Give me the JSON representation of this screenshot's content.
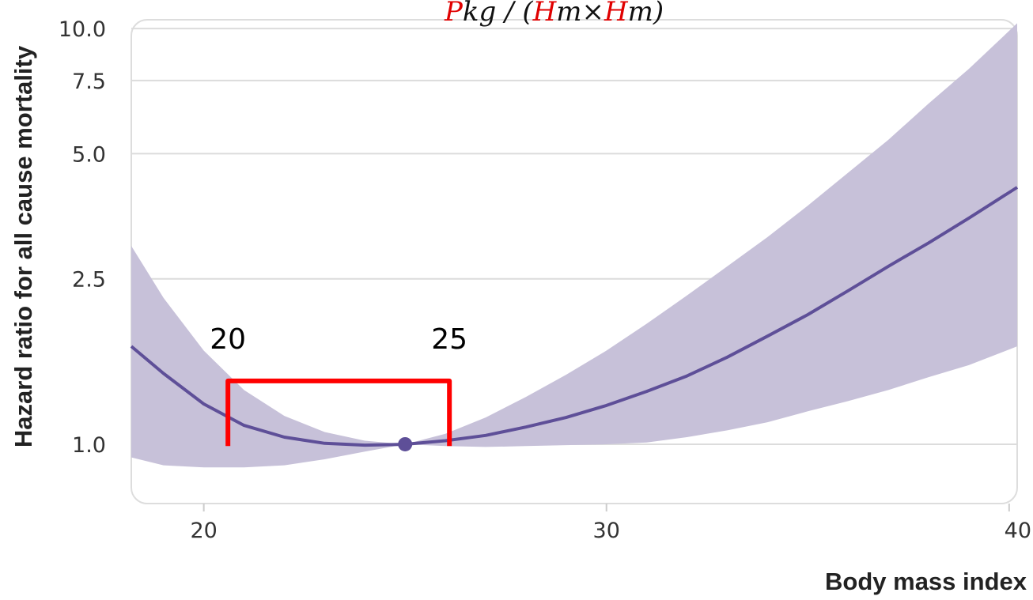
{
  "chart_data": {
    "type": "line",
    "title": "",
    "formula_top": {
      "segments": [
        {
          "text": "P",
          "color": "#e00000"
        },
        {
          "text": "kg / (",
          "color": "#111111"
        },
        {
          "text": "H",
          "color": "#e00000"
        },
        {
          "text": "m×",
          "color": "#111111"
        },
        {
          "text": "H",
          "color": "#e00000"
        },
        {
          "text": "m)",
          "color": "#111111"
        }
      ]
    },
    "xlabel": "Body mass index",
    "ylabel": "Hazard ratio for all cause mortality",
    "xlim": [
      18.2,
      40.2
    ],
    "ylim": [
      0.72,
      10.5
    ],
    "y_scale": "log",
    "xticks": [
      {
        "value": 20,
        "label": "20"
      },
      {
        "value": 30,
        "label": "30"
      },
      {
        "value": 40,
        "label": "40"
      }
    ],
    "yticks": [
      {
        "value": 1.0,
        "label": "1.0"
      },
      {
        "value": 2.5,
        "label": "2.5"
      },
      {
        "value": 5.0,
        "label": "5.0"
      },
      {
        "value": 7.5,
        "label": "7.5"
      },
      {
        "value": 10.0,
        "label": "10.0"
      }
    ],
    "grid": "horizontal",
    "reference_point": {
      "x": 25,
      "y": 1.0
    },
    "series": [
      {
        "color": "#5e4f98",
        "x": [
          18.2,
          19,
          20,
          21,
          22,
          23,
          24,
          25,
          26,
          27,
          28,
          29,
          30,
          31,
          32,
          33,
          34,
          35,
          36,
          37,
          38,
          39,
          40.2
        ],
        "y": [
          1.72,
          1.48,
          1.25,
          1.11,
          1.04,
          1.005,
          0.995,
          1.0,
          1.02,
          1.05,
          1.1,
          1.16,
          1.24,
          1.34,
          1.46,
          1.62,
          1.82,
          2.05,
          2.34,
          2.68,
          3.05,
          3.5,
          4.15
        ],
        "ci_lower": [
          0.93,
          0.89,
          0.88,
          0.88,
          0.89,
          0.92,
          0.96,
          1.0,
          0.99,
          0.985,
          0.99,
          0.995,
          1.0,
          1.01,
          1.04,
          1.08,
          1.13,
          1.2,
          1.27,
          1.35,
          1.45,
          1.55,
          1.72
        ],
        "ci_upper": [
          3.0,
          2.25,
          1.68,
          1.35,
          1.17,
          1.07,
          1.02,
          1.0,
          1.06,
          1.16,
          1.3,
          1.47,
          1.68,
          1.95,
          2.28,
          2.68,
          3.15,
          3.75,
          4.5,
          5.4,
          6.6,
          8.0,
          10.3
        ],
        "ci_color": "#c7c1d9"
      }
    ],
    "annotations": [
      {
        "text": "20",
        "x": 20.6,
        "y": 1.7
      },
      {
        "text": "25",
        "x": 26.1,
        "y": 1.7
      }
    ],
    "bracket": {
      "color": "#ff0000",
      "x_start": 20.6,
      "x_end": 26.1,
      "y_top": 1.42,
      "y_bottom": 0.99
    }
  }
}
